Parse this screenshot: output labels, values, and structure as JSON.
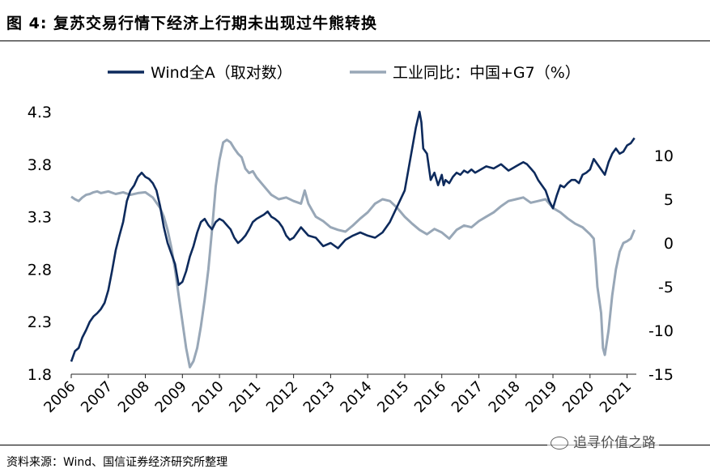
{
  "header": {
    "title": "图 4: 复苏交易行情下经济上行期未出现过牛熊转换"
  },
  "footer": {
    "source": "资料来源：Wind、国信证券经济研究所整理"
  },
  "watermark": {
    "text": "追寻价值之路",
    "icon": "wechat-icon"
  },
  "chart_data": {
    "type": "line",
    "legend_placement": "top",
    "grid": false,
    "colors": {
      "wind": "#0d2a5c",
      "industrial": "#98a7b7"
    },
    "x_ticks": [
      "2006",
      "2007",
      "2008",
      "2009",
      "2010",
      "2011",
      "2012",
      "2013",
      "2014",
      "2015",
      "2016",
      "2017",
      "2018",
      "2019",
      "2020",
      "2021"
    ],
    "xlim": [
      2006.0,
      2021.25
    ],
    "y_left": {
      "ticks": [
        "4.3",
        "3.8",
        "3.3",
        "2.8",
        "2.3",
        "1.8"
      ],
      "lim": [
        1.8,
        4.3
      ]
    },
    "y_right": {
      "ticks": [
        "10",
        "5",
        "0",
        "-5",
        "-10",
        "-15"
      ],
      "lim": [
        -15,
        15
      ]
    },
    "series": [
      {
        "name": "Wind全A（取对数）",
        "axis": "left",
        "x": [
          2006.0,
          2006.1,
          2006.2,
          2006.3,
          2006.4,
          2006.5,
          2006.6,
          2006.7,
          2006.8,
          2006.9,
          2007.0,
          2007.1,
          2007.2,
          2007.3,
          2007.4,
          2007.5,
          2007.6,
          2007.7,
          2007.8,
          2007.9,
          2008.0,
          2008.1,
          2008.2,
          2008.3,
          2008.4,
          2008.5,
          2008.6,
          2008.7,
          2008.8,
          2008.9,
          2009.0,
          2009.1,
          2009.2,
          2009.3,
          2009.4,
          2009.5,
          2009.6,
          2009.7,
          2009.8,
          2009.9,
          2010.0,
          2010.1,
          2010.2,
          2010.3,
          2010.4,
          2010.5,
          2010.6,
          2010.7,
          2010.8,
          2010.9,
          2011.0,
          2011.1,
          2011.2,
          2011.3,
          2011.4,
          2011.5,
          2011.6,
          2011.7,
          2011.8,
          2011.9,
          2012.0,
          2012.2,
          2012.4,
          2012.6,
          2012.8,
          2013.0,
          2013.2,
          2013.4,
          2013.6,
          2013.8,
          2014.0,
          2014.2,
          2014.4,
          2014.6,
          2014.8,
          2015.0,
          2015.1,
          2015.2,
          2015.3,
          2015.4,
          2015.45,
          2015.5,
          2015.6,
          2015.7,
          2015.8,
          2015.9,
          2016.0,
          2016.05,
          2016.1,
          2016.2,
          2016.3,
          2016.4,
          2016.5,
          2016.6,
          2016.7,
          2016.8,
          2016.9,
          2017.0,
          2017.2,
          2017.4,
          2017.6,
          2017.8,
          2018.0,
          2018.1,
          2018.2,
          2018.3,
          2018.4,
          2018.5,
          2018.6,
          2018.7,
          2018.8,
          2018.9,
          2019.0,
          2019.1,
          2019.2,
          2019.3,
          2019.4,
          2019.5,
          2019.6,
          2019.7,
          2019.8,
          2019.9,
          2020.0,
          2020.1,
          2020.2,
          2020.3,
          2020.4,
          2020.5,
          2020.6,
          2020.7,
          2020.8,
          2020.9,
          2021.0,
          2021.1,
          2021.2
        ],
        "values": [
          1.92,
          2.02,
          2.05,
          2.15,
          2.22,
          2.3,
          2.35,
          2.38,
          2.42,
          2.48,
          2.6,
          2.78,
          2.98,
          3.12,
          3.25,
          3.45,
          3.55,
          3.6,
          3.68,
          3.72,
          3.68,
          3.66,
          3.62,
          3.55,
          3.4,
          3.2,
          3.05,
          2.95,
          2.85,
          2.65,
          2.68,
          2.78,
          2.92,
          3.02,
          3.15,
          3.25,
          3.28,
          3.22,
          3.18,
          3.25,
          3.28,
          3.26,
          3.22,
          3.18,
          3.1,
          3.05,
          3.08,
          3.12,
          3.18,
          3.25,
          3.28,
          3.3,
          3.32,
          3.35,
          3.3,
          3.28,
          3.25,
          3.2,
          3.12,
          3.08,
          3.1,
          3.2,
          3.12,
          3.1,
          3.02,
          3.05,
          3.0,
          3.08,
          3.12,
          3.15,
          3.12,
          3.1,
          3.15,
          3.25,
          3.4,
          3.55,
          3.75,
          3.95,
          4.15,
          4.3,
          4.2,
          3.95,
          3.9,
          3.65,
          3.72,
          3.6,
          3.7,
          3.6,
          3.65,
          3.62,
          3.68,
          3.72,
          3.7,
          3.74,
          3.72,
          3.75,
          3.72,
          3.74,
          3.78,
          3.76,
          3.8,
          3.74,
          3.78,
          3.8,
          3.82,
          3.8,
          3.76,
          3.72,
          3.65,
          3.6,
          3.55,
          3.45,
          3.38,
          3.5,
          3.6,
          3.58,
          3.62,
          3.65,
          3.65,
          3.62,
          3.7,
          3.72,
          3.75,
          3.85,
          3.8,
          3.75,
          3.7,
          3.82,
          3.9,
          3.95,
          3.9,
          3.92,
          3.98,
          4.0,
          4.05
        ]
      },
      {
        "name": "工业同比：中国+G7（%）",
        "axis": "right",
        "x": [
          2006.0,
          2006.1,
          2006.2,
          2006.3,
          2006.4,
          2006.5,
          2006.6,
          2006.7,
          2006.8,
          2006.9,
          2007.0,
          2007.2,
          2007.4,
          2007.6,
          2007.8,
          2008.0,
          2008.2,
          2008.4,
          2008.5,
          2008.6,
          2008.7,
          2008.8,
          2008.9,
          2009.0,
          2009.1,
          2009.2,
          2009.3,
          2009.4,
          2009.5,
          2009.6,
          2009.7,
          2009.8,
          2009.9,
          2010.0,
          2010.1,
          2010.2,
          2010.3,
          2010.4,
          2010.5,
          2010.6,
          2010.7,
          2010.8,
          2010.9,
          2011.0,
          2011.2,
          2011.4,
          2011.6,
          2011.8,
          2012.0,
          2012.2,
          2012.3,
          2012.4,
          2012.6,
          2012.8,
          2013.0,
          2013.2,
          2013.4,
          2013.6,
          2013.8,
          2014.0,
          2014.2,
          2014.4,
          2014.6,
          2014.8,
          2015.0,
          2015.2,
          2015.4,
          2015.6,
          2015.8,
          2016.0,
          2016.2,
          2016.4,
          2016.6,
          2016.8,
          2017.0,
          2017.2,
          2017.4,
          2017.6,
          2017.8,
          2018.0,
          2018.2,
          2018.4,
          2018.6,
          2018.8,
          2019.0,
          2019.2,
          2019.4,
          2019.6,
          2019.8,
          2020.0,
          2020.1,
          2020.15,
          2020.2,
          2020.3,
          2020.35,
          2020.4,
          2020.5,
          2020.6,
          2020.7,
          2020.8,
          2020.9,
          2021.0,
          2021.1,
          2021.2
        ],
        "values": [
          5.3,
          5.0,
          4.8,
          5.2,
          5.5,
          5.6,
          5.8,
          5.9,
          5.7,
          5.8,
          5.9,
          5.6,
          5.8,
          5.5,
          5.7,
          5.8,
          5.2,
          4.0,
          3.0,
          1.5,
          -0.5,
          -3.0,
          -6.0,
          -9.0,
          -12.0,
          -14.2,
          -13.5,
          -12.0,
          -9.5,
          -6.5,
          -3.0,
          1.5,
          6.5,
          9.5,
          11.5,
          11.8,
          11.5,
          10.8,
          10.2,
          9.8,
          8.5,
          8.0,
          8.2,
          7.5,
          6.5,
          5.5,
          5.0,
          5.2,
          4.8,
          4.5,
          6.0,
          4.5,
          3.0,
          2.5,
          1.8,
          1.5,
          1.3,
          2.0,
          2.8,
          3.5,
          4.5,
          5.0,
          4.8,
          4.0,
          3.0,
          2.2,
          1.5,
          1.0,
          1.6,
          1.2,
          0.5,
          1.5,
          2.0,
          1.8,
          2.5,
          3.0,
          3.5,
          4.2,
          4.8,
          5.0,
          5.2,
          4.6,
          4.8,
          5.0,
          4.0,
          3.5,
          2.8,
          2.2,
          1.8,
          1.0,
          0.5,
          -2.0,
          -5.0,
          -8.0,
          -12.0,
          -12.8,
          -10.0,
          -6.0,
          -3.0,
          -1.0,
          0.0,
          0.2,
          0.5,
          1.5
        ]
      }
    ]
  }
}
